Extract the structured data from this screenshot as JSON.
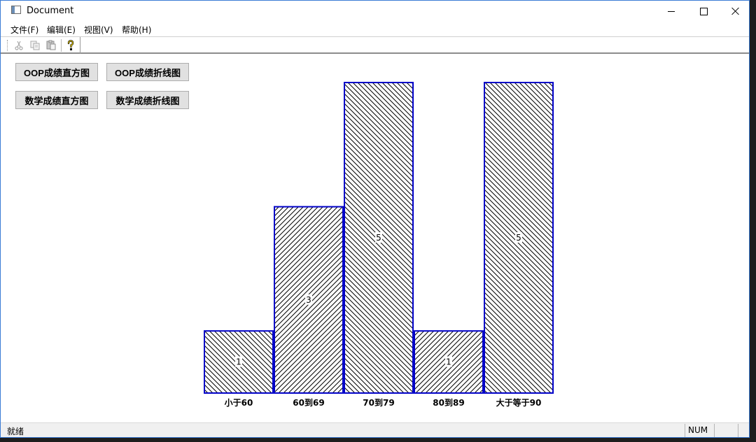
{
  "window": {
    "title": "Document"
  },
  "menu": {
    "items": [
      {
        "label": "文件(F)"
      },
      {
        "label": "编辑(E)"
      },
      {
        "label": "视图(V)"
      },
      {
        "label": "帮助(H)"
      }
    ]
  },
  "toolbar": {
    "buttons": [
      {
        "icon": "cut-icon",
        "enabled": false
      },
      {
        "icon": "copy-icon",
        "enabled": false
      },
      {
        "icon": "paste-icon",
        "enabled": false
      },
      {
        "icon": "help-icon",
        "enabled": true
      }
    ]
  },
  "buttons": {
    "oop_hist": "OOP成绩直方图",
    "oop_line": "OOP成绩折线图",
    "math_hist": "数学成绩直方图",
    "math_line": "数学成绩折线图"
  },
  "chart_data": {
    "type": "bar",
    "categories": [
      "小于60",
      "60到69",
      "70到79",
      "80到89",
      "大于等于90"
    ],
    "values": [
      1,
      3,
      5,
      1,
      5
    ],
    "ylim": [
      0,
      5
    ],
    "grid": false,
    "colors": {
      "stroke": "#0000c8",
      "hatch": "#000000"
    },
    "hatch_directions": [
      "backslash",
      "slash",
      "backslash",
      "slash",
      "backslash"
    ]
  },
  "status": {
    "text": "就绪",
    "num": "NUM"
  }
}
